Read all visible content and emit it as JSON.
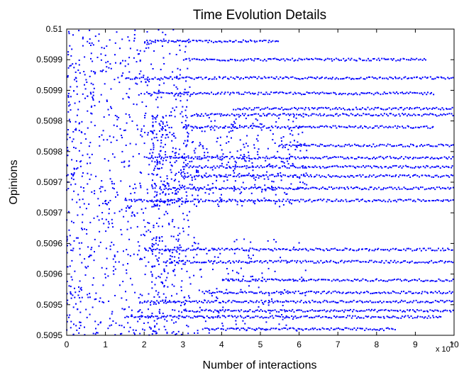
{
  "chart_data": {
    "type": "scatter",
    "title": "Time Evolution Details",
    "xlabel": "Number of interactions",
    "ylabel": "Opinions",
    "x_multiplier_label": "x 10",
    "x_multiplier_exp": "7",
    "x_ticks": [
      "0",
      "1",
      "2",
      "3",
      "4",
      "5",
      "6",
      "7",
      "8",
      "9",
      "10"
    ],
    "x_tick_values": [
      0,
      1,
      2,
      3,
      4,
      5,
      6,
      7,
      8,
      9,
      10
    ],
    "y_ticks": [
      "0.5095",
      "0.5095",
      "0.5096",
      "0.5096",
      "0.5097",
      "0.5097",
      "0.5098",
      "0.5098",
      "0.5099",
      "0.5099",
      "0.51"
    ],
    "y_tick_values": [
      0.5095,
      0.50955,
      0.5096,
      0.50965,
      0.5097,
      0.50975,
      0.5098,
      0.50985,
      0.5099,
      0.50995,
      0.51
    ],
    "xlim": [
      0,
      10
    ],
    "ylim": [
      0.5095,
      0.51
    ],
    "marker_color": "#0000ff",
    "grid": false,
    "description_of_data": "Dense blue point markers: opinions scattered widely at early interactions, converging into horizontal bands (clusters) around 0.50976-0.50982 and 0.50953-0.50958 as interactions increase.",
    "bands": [
      {
        "y": 0.50998,
        "x_start": 2.0,
        "x_end": 5.5
      },
      {
        "y": 0.50995,
        "x_start": 3.0,
        "x_end": 9.3
      },
      {
        "y": 0.50992,
        "x_start": 1.5,
        "x_end": 10
      },
      {
        "y": 0.509895,
        "x_start": 2.0,
        "x_end": 9.5
      },
      {
        "y": 0.50987,
        "x_start": 4.3,
        "x_end": 10
      },
      {
        "y": 0.50986,
        "x_start": 3.2,
        "x_end": 10
      },
      {
        "y": 0.50984,
        "x_start": 3.0,
        "x_end": 9.5
      },
      {
        "y": 0.50981,
        "x_start": 5.5,
        "x_end": 10
      },
      {
        "y": 0.50979,
        "x_start": 2.0,
        "x_end": 10
      },
      {
        "y": 0.509775,
        "x_start": 3.0,
        "x_end": 10
      },
      {
        "y": 0.50976,
        "x_start": 3.0,
        "x_end": 10
      },
      {
        "y": 0.50974,
        "x_start": 2.5,
        "x_end": 10
      },
      {
        "y": 0.50972,
        "x_start": 1.5,
        "x_end": 10
      },
      {
        "y": 0.50964,
        "x_start": 2.0,
        "x_end": 10
      },
      {
        "y": 0.50962,
        "x_start": 2.5,
        "x_end": 10
      },
      {
        "y": 0.50959,
        "x_start": 4.0,
        "x_end": 10
      },
      {
        "y": 0.50957,
        "x_start": 3.5,
        "x_end": 10
      },
      {
        "y": 0.509555,
        "x_start": 2.0,
        "x_end": 10
      },
      {
        "y": 0.50954,
        "x_start": 3.0,
        "x_end": 10
      },
      {
        "y": 0.50953,
        "x_start": 1.5,
        "x_end": 9.7
      },
      {
        "y": 0.50951,
        "x_start": 3.5,
        "x_end": 8.5
      }
    ]
  }
}
